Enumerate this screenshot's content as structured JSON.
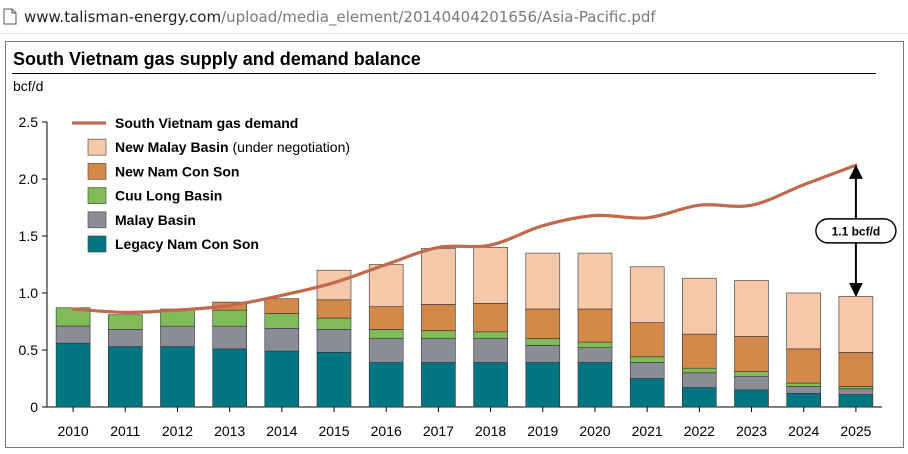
{
  "browser": {
    "url_host": "www.talisman-energy.com",
    "url_path": "/upload/media_element/20140404201656/Asia-Pacific.pdf"
  },
  "chart_data": {
    "type": "bar",
    "stacked": true,
    "title": "South Vietnam gas supply and demand balance",
    "ylabel": "bcf/d",
    "xlabel": "",
    "ylim": [
      0,
      2.5
    ],
    "yticks": [
      "0",
      "0.5",
      "1.0",
      "1.5",
      "2.0",
      "2.5"
    ],
    "grid": false,
    "legend_position": "top-left",
    "categories": [
      "2010",
      "2011",
      "2012",
      "2013",
      "2014",
      "2015",
      "2016",
      "2017",
      "2018",
      "2019",
      "2020",
      "2021",
      "2022",
      "2023",
      "2024",
      "2025"
    ],
    "series": [
      {
        "name": "Legacy Nam Con Son",
        "color": "#007682",
        "values": [
          0.56,
          0.53,
          0.53,
          0.51,
          0.49,
          0.48,
          0.39,
          0.39,
          0.39,
          0.39,
          0.39,
          0.25,
          0.17,
          0.15,
          0.12,
          0.11
        ]
      },
      {
        "name": "Malay Basin",
        "color": "#8a8d96",
        "values": [
          0.15,
          0.15,
          0.18,
          0.2,
          0.2,
          0.2,
          0.21,
          0.21,
          0.21,
          0.15,
          0.13,
          0.14,
          0.13,
          0.12,
          0.06,
          0.05
        ]
      },
      {
        "name": "Cuu Long Basin",
        "color": "#7fbb57",
        "values": [
          0.16,
          0.13,
          0.14,
          0.14,
          0.13,
          0.1,
          0.08,
          0.07,
          0.06,
          0.06,
          0.05,
          0.05,
          0.04,
          0.04,
          0.03,
          0.02
        ]
      },
      {
        "name": "New Nam Con Son",
        "color": "#d4894a",
        "values": [
          0,
          0,
          0.01,
          0.07,
          0.13,
          0.16,
          0.2,
          0.23,
          0.25,
          0.26,
          0.29,
          0.3,
          0.3,
          0.31,
          0.3,
          0.3
        ]
      },
      {
        "name": "New Malay Basin",
        "name_suffix": " (under negotiation)",
        "color": "#f4c8a8",
        "values": [
          0,
          0,
          0,
          0,
          0,
          0.26,
          0.37,
          0.49,
          0.49,
          0.49,
          0.49,
          0.49,
          0.49,
          0.49,
          0.49,
          0.49
        ]
      }
    ],
    "demand": {
      "name": "South Vietnam gas demand",
      "color": "#c0694c",
      "values": [
        0.86,
        0.83,
        0.85,
        0.89,
        0.98,
        1.09,
        1.25,
        1.4,
        1.42,
        1.59,
        1.68,
        1.66,
        1.77,
        1.77,
        1.95,
        2.12
      ]
    },
    "annotation": {
      "text": "1.1 bcf/d",
      "from_value": 2.12,
      "to_value": 0.97,
      "category": "2025"
    }
  }
}
